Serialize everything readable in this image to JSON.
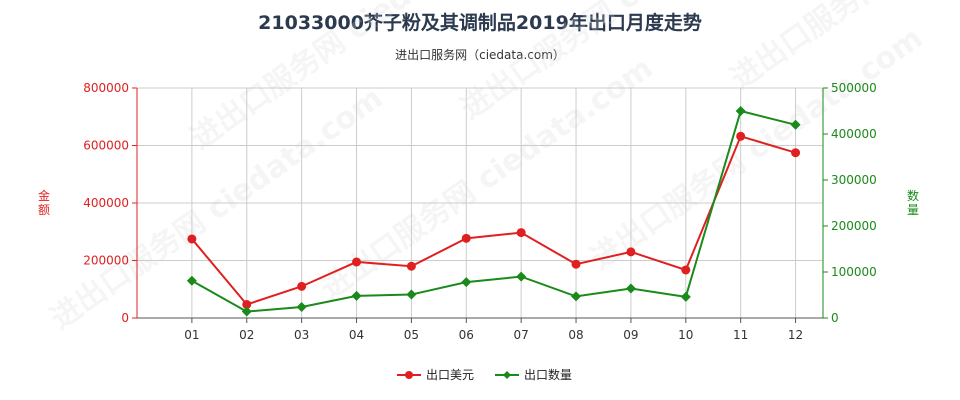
{
  "title": "21033000芥子粉及其调制品2019年出口月度走势",
  "subtitle": "进出口服务网（ciedata.com）",
  "watermark": "进出口服务网 ciedata.com",
  "colors": {
    "left_axis": "#e02020",
    "right_axis": "#1a8a1a",
    "grid": "#cccccc",
    "series_amount": "#e02020",
    "series_quantity": "#1a8a1a"
  },
  "chart_data": {
    "type": "line",
    "categories": [
      "01",
      "02",
      "03",
      "04",
      "05",
      "06",
      "07",
      "08",
      "09",
      "10",
      "11",
      "12"
    ],
    "y_left": {
      "label": "金额",
      "ylim": [
        0,
        800000
      ],
      "ticks": [
        0,
        200000,
        400000,
        600000,
        800000
      ],
      "tick_labels": [
        "0",
        "200000",
        "400000",
        "600000",
        "800000"
      ]
    },
    "y_right": {
      "label": "数量",
      "ylim": [
        0,
        500000
      ],
      "ticks": [
        0,
        100000,
        200000,
        300000,
        400000,
        500000
      ],
      "tick_labels": [
        "0",
        "100000",
        "200000",
        "300000",
        "400000",
        "500000"
      ]
    },
    "grid": true,
    "legend_position": "bottom-center",
    "series": [
      {
        "name": "出口美元",
        "axis": "left",
        "color": "#e02020",
        "values": [
          275000,
          47000,
          110000,
          195000,
          180000,
          277000,
          297000,
          187000,
          230000,
          167000,
          632000,
          575000
        ]
      },
      {
        "name": "出口数量",
        "axis": "right",
        "color": "#1a8a1a",
        "values": [
          81000,
          14000,
          24000,
          48000,
          51000,
          78000,
          90000,
          47000,
          64000,
          46000,
          450000,
          420000
        ]
      }
    ]
  }
}
